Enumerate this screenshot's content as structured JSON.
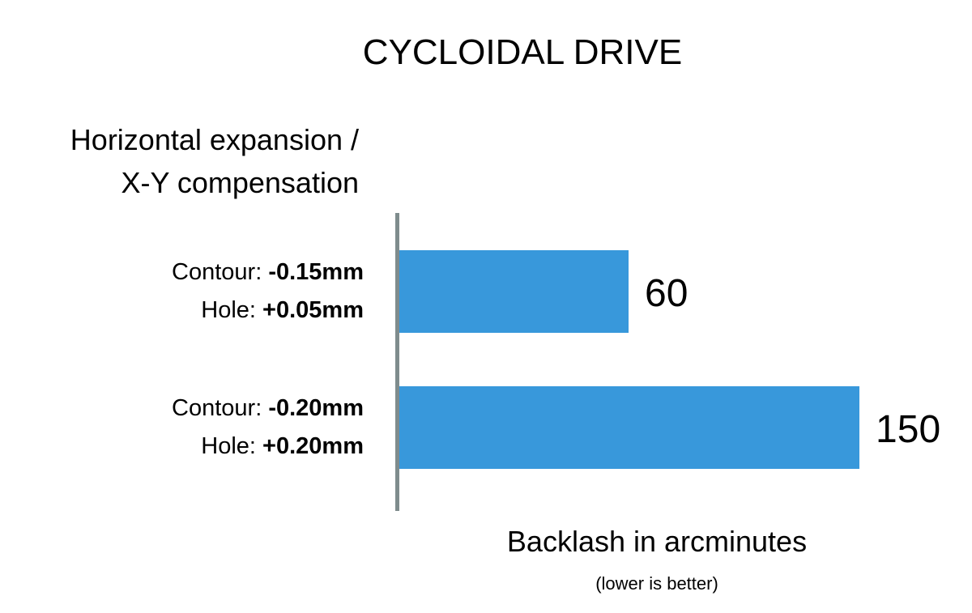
{
  "chart_data": {
    "type": "bar",
    "orientation": "horizontal",
    "title": "CYCLOIDAL DRIVE",
    "ylabel_lines": [
      "Horizontal expansion /",
      "X-Y compensation"
    ],
    "xlabel": "Backlash in arcminutes",
    "xlabel_note": "(lower is better)",
    "categories": [
      {
        "lines": [
          {
            "label": "Contour: ",
            "value": "-0.15mm"
          },
          {
            "label": "Hole: ",
            "value": "+0.05mm"
          }
        ]
      },
      {
        "lines": [
          {
            "label": "Contour: ",
            "value": "-0.20mm"
          },
          {
            "label": "Hole: ",
            "value": "+0.20mm"
          }
        ]
      }
    ],
    "values": [
      60,
      150
    ],
    "data_labels": [
      "60",
      "150"
    ],
    "grid": false,
    "colors": {
      "bar": "#3898db",
      "axis": "#7f8c8d"
    }
  }
}
